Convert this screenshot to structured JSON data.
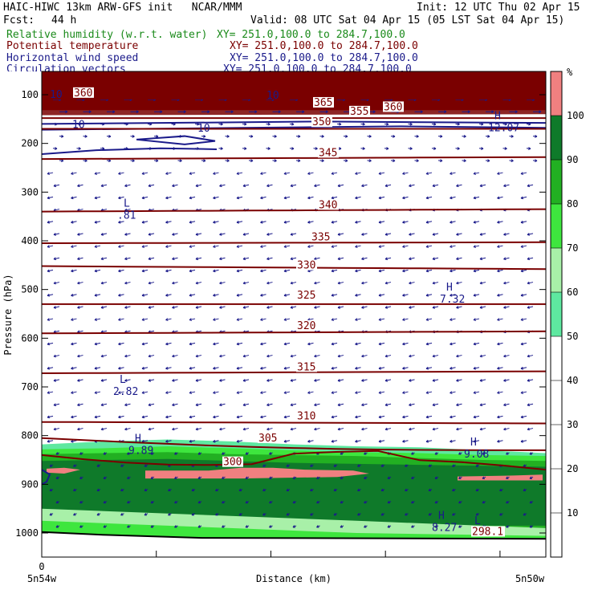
{
  "header": {
    "title_line": "HAIC-HIWC 13km ARW-GFS init   NCAR/MMM",
    "init": "Init: 12 UTC Thu 02 Apr 15",
    "fcst_label": "Fcst:",
    "fcst_value": "44 h",
    "valid": "Valid: 08 UTC Sat 04 Apr 15 (05 LST Sat 04 Apr 15)",
    "fields": [
      {
        "name": "Relative humidity (w.r.t. water)",
        "xy": "XY= 251.0,100.0 to 284.7,100.0",
        "color": "#1a8a1a"
      },
      {
        "name": "Potential temperature",
        "xy": "XY= 251.0,100.0 to 284.7,100.0",
        "color": "#7a0000"
      },
      {
        "name": "Horizontal wind speed",
        "xy": "XY= 251.0,100.0 to 284.7,100.0",
        "color": "#1a1a8a"
      },
      {
        "name": "Circulation vectors",
        "xy": "XY= 251.0,100.0 to 284.7,100.0",
        "color": "#1a1a8a"
      }
    ]
  },
  "chart_data": {
    "type": "cross-section",
    "ylabel": "Pressure (hPa)",
    "xlabel": "Distance (km)",
    "y_ticks": [
      100,
      200,
      300,
      400,
      500,
      600,
      700,
      800,
      900,
      1000
    ],
    "ylim": [
      1050,
      88
    ],
    "y_scale": "linear",
    "x_tick_labels": [
      "0"
    ],
    "x_end_labels": [
      "5n54w",
      "5n50w"
    ],
    "colorbar": {
      "unit": "%",
      "ticks": [
        10,
        20,
        30,
        40,
        50,
        60,
        70,
        80,
        90,
        100
      ],
      "bands": [
        {
          "from": 50,
          "to": 60,
          "color": "#5ee8a0"
        },
        {
          "from": 60,
          "to": 70,
          "color": "#a8f0a8"
        },
        {
          "from": 70,
          "to": 80,
          "color": "#3ee63e"
        },
        {
          "from": 80,
          "to": 90,
          "color": "#22b022"
        },
        {
          "from": 90,
          "to": 100,
          "color": "#0f7a2a"
        },
        {
          "from": 100,
          "to": 110,
          "color": "#f08080"
        }
      ],
      "top_color": "#7a0000"
    },
    "theta_contours": [
      {
        "value": "360",
        "p": [
          108,
          108
        ]
      },
      {
        "value": "365",
        "p": [
          130,
          130
        ]
      },
      {
        "value": "355",
        "p": [
          148,
          148
        ]
      },
      {
        "value": "350",
        "p": [
          170,
          170
        ]
      },
      {
        "value": "345",
        "p": [
          232,
          228
        ]
      },
      {
        "value": "340",
        "p": [
          340,
          335
        ]
      },
      {
        "value": "335",
        "p": [
          405,
          403
        ]
      },
      {
        "value": "330",
        "p": [
          452,
          458
        ]
      },
      {
        "value": "325",
        "p": [
          530,
          530
        ]
      },
      {
        "value": "320",
        "p": [
          590,
          586
        ]
      },
      {
        "value": "315",
        "p": [
          672,
          668
        ]
      },
      {
        "value": "310",
        "p": [
          772,
          775
        ]
      },
      {
        "value": "305",
        "p": [
          805,
          830
        ]
      },
      {
        "value": "300",
        "p": [
          840,
          870
        ]
      }
    ],
    "contour_labels": [
      {
        "text": "360",
        "x": 106,
        "p": 103
      },
      {
        "text": "365",
        "x": 405,
        "p": 123
      },
      {
        "text": "355",
        "x": 450,
        "p": 141
      },
      {
        "text": "360",
        "x": 492,
        "p": 132
      },
      {
        "text": "350",
        "x": 403,
        "p": 163
      },
      {
        "text": "345",
        "x": 411,
        "p": 226
      },
      {
        "text": "340",
        "x": 411,
        "p": 333
      },
      {
        "text": "335",
        "x": 402,
        "p": 399
      },
      {
        "text": "330",
        "x": 384,
        "p": 457
      },
      {
        "text": "325",
        "x": 384,
        "p": 519
      },
      {
        "text": "320",
        "x": 384,
        "p": 581
      },
      {
        "text": "315",
        "x": 384,
        "p": 666
      },
      {
        "text": "310",
        "x": 384,
        "p": 767
      },
      {
        "text": "305",
        "x": 336,
        "p": 812
      },
      {
        "text": "300",
        "x": 292,
        "p": 861
      },
      {
        "text": "298.1",
        "x": 602,
        "p": 1004
      }
    ],
    "wind_labels": [
      {
        "text": "10",
        "x": 98,
        "p": 168
      },
      {
        "text": "10",
        "x": 254,
        "p": 176
      },
      {
        "text": "10",
        "x": 70,
        "p": 107
      },
      {
        "text": "10",
        "x": 340,
        "p": 108
      }
    ],
    "extrema": [
      {
        "kind": "L",
        "x": 158,
        "p": 330,
        "value": ".81"
      },
      {
        "kind": "H",
        "x": 560,
        "p": 502,
        "value": "7.32"
      },
      {
        "kind": "L",
        "x": 153,
        "p": 692,
        "value": "2.82"
      },
      {
        "kind": "H",
        "x": 172,
        "p": 813,
        "value": "9.89"
      },
      {
        "kind": "H",
        "x": 590,
        "p": 820,
        "value": "9.08"
      },
      {
        "kind": "H",
        "x": 620,
        "p": 150,
        "value": "12.07"
      },
      {
        "kind": "H",
        "x": 550,
        "p": 971,
        "value": "8.27"
      },
      {
        "kind": "L",
        "x": 595,
        "p": 982,
        "value": ""
      }
    ]
  }
}
